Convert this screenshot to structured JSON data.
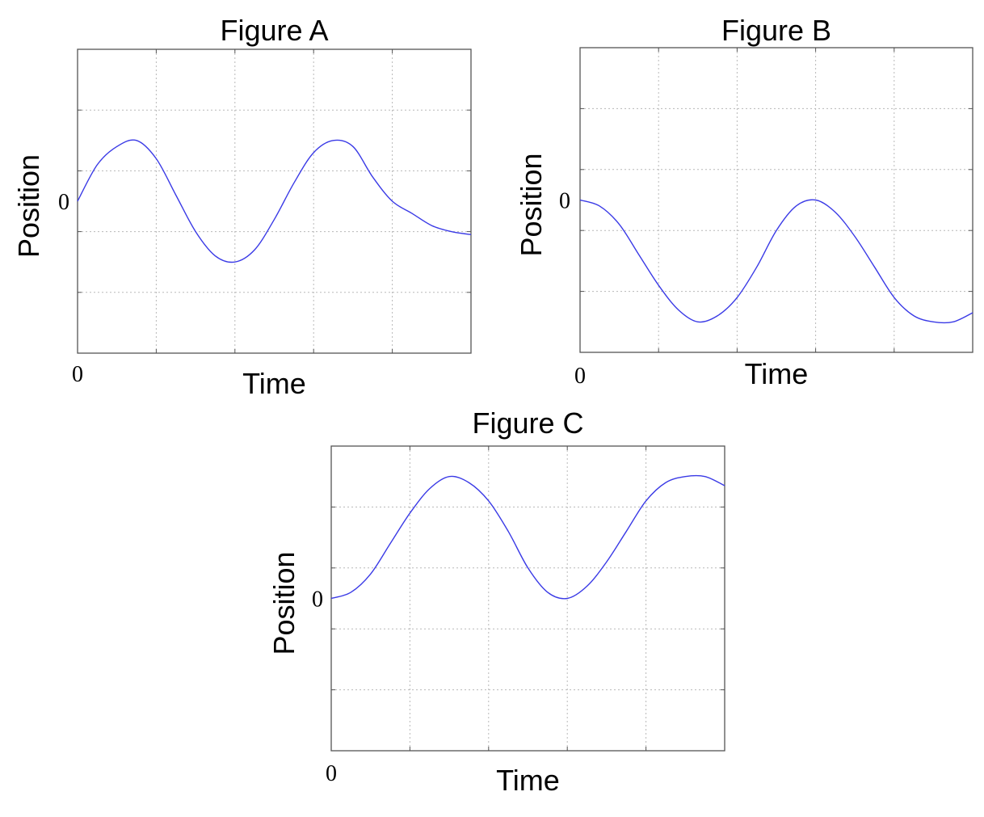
{
  "chart_data": [
    {
      "type": "line",
      "title": "Figure A",
      "xlabel": "Time",
      "ylabel": "Position",
      "x_tick_label": "0",
      "y_tick_label": "0",
      "grid": true,
      "xlim": [
        0,
        5
      ],
      "ylim": [
        -2.5,
        2.5
      ],
      "line_color": "#3a3ae6",
      "series": [
        {
          "x": [
            0,
            0.25,
            0.5,
            0.75,
            1.0,
            1.25,
            1.5,
            1.75,
            2.0,
            2.25,
            2.5,
            2.75,
            3.0,
            3.25,
            3.5,
            3.75,
            4.0,
            4.25,
            4.5,
            4.75,
            5.0
          ],
          "values": [
            0,
            0.6,
            0.9,
            1.0,
            0.7,
            0.1,
            -0.5,
            -0.9,
            -1.0,
            -0.8,
            -0.3,
            0.3,
            0.8,
            1.0,
            0.9,
            0.4,
            0.0,
            -0.2,
            -0.4,
            -0.5,
            -0.55
          ]
        }
      ]
    },
    {
      "type": "line",
      "title": "Figure B",
      "xlabel": "Time",
      "ylabel": "Position",
      "x_tick_label": "0",
      "y_tick_label": "0",
      "grid": true,
      "xlim": [
        0,
        5
      ],
      "ylim": [
        -2.5,
        2.5
      ],
      "line_color": "#3a3ae6",
      "series": [
        {
          "x": [
            0,
            0.25,
            0.5,
            0.75,
            1.0,
            1.25,
            1.5,
            1.75,
            2.0,
            2.25,
            2.5,
            2.75,
            3.0,
            3.25,
            3.5,
            3.75,
            4.0,
            4.25,
            4.5,
            4.75,
            5.0
          ],
          "values": [
            0,
            -0.1,
            -0.4,
            -0.9,
            -1.4,
            -1.8,
            -2.0,
            -1.9,
            -1.6,
            -1.1,
            -0.5,
            -0.1,
            0.0,
            -0.2,
            -0.6,
            -1.1,
            -1.6,
            -1.9,
            -2.0,
            -2.0,
            -1.85
          ]
        }
      ]
    },
    {
      "type": "line",
      "title": "Figure C",
      "xlabel": "Time",
      "ylabel": "Position",
      "x_tick_label": "0",
      "y_tick_label": "0",
      "grid": true,
      "xlim": [
        0,
        5
      ],
      "ylim": [
        -2.5,
        2.5
      ],
      "line_color": "#3a3ae6",
      "series": [
        {
          "x": [
            0,
            0.25,
            0.5,
            0.75,
            1.0,
            1.25,
            1.5,
            1.75,
            2.0,
            2.25,
            2.5,
            2.75,
            3.0,
            3.25,
            3.5,
            3.75,
            4.0,
            4.25,
            4.5,
            4.75,
            5.0
          ],
          "values": [
            0,
            0.1,
            0.4,
            0.9,
            1.4,
            1.8,
            2.0,
            1.9,
            1.6,
            1.1,
            0.5,
            0.1,
            0.0,
            0.2,
            0.6,
            1.1,
            1.6,
            1.9,
            2.0,
            2.0,
            1.85
          ]
        }
      ]
    }
  ]
}
